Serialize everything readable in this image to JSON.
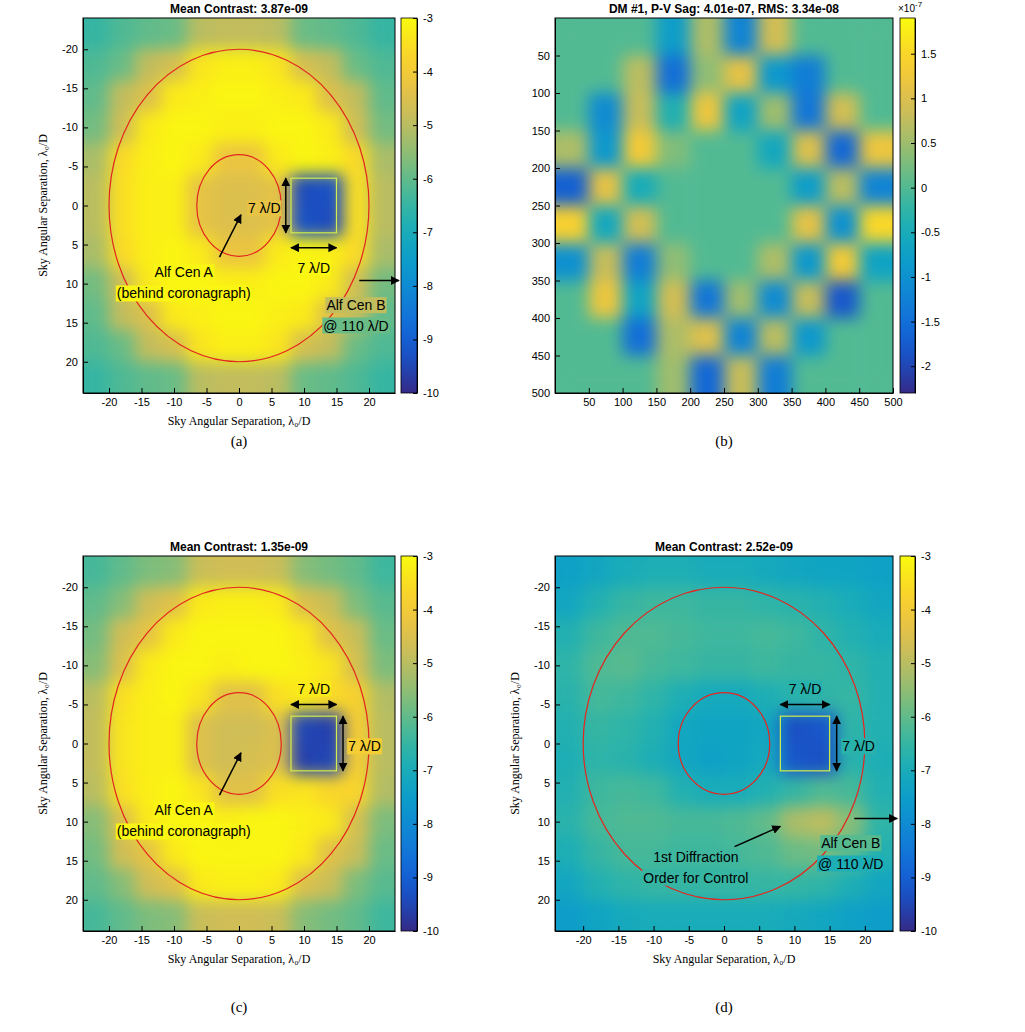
{
  "chart_data": [
    {
      "type": "heatmap",
      "title": "Mean Contrast: 3.87e-09",
      "caption": "(a)",
      "x_label": "Sky Angular Separation, λ₀/D",
      "y_label": "Sky Angular Separation, λ₀/D",
      "xlim": [
        -24,
        24
      ],
      "ylim": [
        -24,
        24
      ],
      "xticks": [
        -20,
        -15,
        -10,
        -5,
        0,
        5,
        10,
        15,
        20
      ],
      "yticks": [
        -20,
        -15,
        -10,
        -5,
        0,
        5,
        10,
        15,
        20
      ],
      "x_edges": [
        -24,
        -20,
        -16,
        -12,
        -8,
        -4,
        0,
        4,
        8,
        12,
        16,
        20,
        24
      ],
      "y_edges": [
        -24,
        -20,
        -16,
        -12,
        -8,
        -4,
        0,
        4,
        8,
        12,
        16,
        20,
        24
      ],
      "z": [
        [
          -6.5,
          -6.2,
          -6.0,
          -5.9,
          -5.0,
          -4.9,
          -4.9,
          -5.0,
          -5.9,
          -6.0,
          -6.2,
          -6.5
        ],
        [
          -6.2,
          -5.9,
          -4.9,
          -4.6,
          -3.4,
          -3.2,
          -3.2,
          -3.4,
          -4.6,
          -4.9,
          -5.9,
          -6.2
        ],
        [
          -6.0,
          -4.9,
          -4.5,
          -3.3,
          -3.2,
          -3.1,
          -3.1,
          -3.2,
          -3.3,
          -4.5,
          -4.9,
          -6.0
        ],
        [
          -5.8,
          -4.7,
          -3.3,
          -3.1,
          -3.1,
          -3.2,
          -3.2,
          -3.1,
          -3.1,
          -3.3,
          -4.7,
          -5.8
        ],
        [
          -5.2,
          -3.6,
          -3.2,
          -3.1,
          -3.3,
          -4.2,
          -4.2,
          -3.3,
          -3.1,
          -3.2,
          -3.6,
          -5.2
        ],
        [
          -5.0,
          -3.5,
          -3.2,
          -3.2,
          -4.3,
          -4.5,
          -4.5,
          -4.3,
          -9.4,
          -9.3,
          -3.5,
          -5.0
        ],
        [
          -5.0,
          -3.5,
          -3.2,
          -3.2,
          -4.3,
          -4.5,
          -4.5,
          -4.3,
          -9.3,
          -9.4,
          -3.5,
          -5.0
        ],
        [
          -5.2,
          -3.6,
          -3.2,
          -3.1,
          -3.3,
          -4.2,
          -4.2,
          -3.3,
          -3.1,
          -3.2,
          -3.6,
          -5.2
        ],
        [
          -5.8,
          -4.7,
          -3.3,
          -3.1,
          -3.1,
          -3.2,
          -3.2,
          -3.1,
          -3.1,
          -3.3,
          -4.7,
          -5.8
        ],
        [
          -6.0,
          -4.9,
          -4.5,
          -3.3,
          -3.2,
          -3.1,
          -3.1,
          -3.2,
          -3.3,
          -4.5,
          -4.9,
          -6.0
        ],
        [
          -6.2,
          -5.9,
          -4.9,
          -4.6,
          -3.4,
          -3.2,
          -3.2,
          -3.4,
          -4.6,
          -4.9,
          -5.9,
          -6.2
        ],
        [
          -6.5,
          -6.2,
          -6.0,
          -5.9,
          -5.0,
          -4.9,
          -4.9,
          -5.0,
          -5.9,
          -6.0,
          -6.2,
          -6.5
        ]
      ],
      "colorbar": {
        "range": [
          -10,
          -3
        ],
        "ticks": [
          -3,
          -4,
          -5,
          -6,
          -7,
          -8,
          -9,
          -10
        ]
      },
      "circles": [
        {
          "cx": 0,
          "cy": 0,
          "r": 6.5
        },
        {
          "cx": 0,
          "cy": 0,
          "r": 20
        }
      ],
      "box": {
        "x": [
          8,
          15
        ],
        "y": [
          -3.5,
          3.5
        ]
      },
      "annotations": [
        {
          "text": [
            "7 λ/D"
          ]
        },
        {
          "text": [
            "7 λ/D"
          ]
        },
        {
          "text": [
            "Alf Cen A",
            "(behind coronagraph)"
          ]
        },
        {
          "text": [
            "Alf Cen B",
            "@ 110 λ/D"
          ]
        }
      ]
    },
    {
      "type": "heatmap",
      "title": "DM #1, P-V Sag: 4.01e-07, RMS: 3.34e-08",
      "caption": "(b)",
      "xlim": [
        0,
        500
      ],
      "ylim": [
        0,
        500
      ],
      "xticks": [
        50,
        100,
        150,
        200,
        250,
        300,
        350,
        400,
        450,
        500
      ],
      "yticks": [
        50,
        100,
        150,
        200,
        250,
        300,
        350,
        400,
        450,
        500
      ],
      "x_edges": [
        0,
        50,
        100,
        150,
        200,
        250,
        300,
        350,
        400,
        450,
        500
      ],
      "y_edges": [
        0,
        50,
        100,
        150,
        200,
        250,
        300,
        350,
        400,
        450,
        500
      ],
      "z": [
        [
          0,
          0,
          0,
          -0.8,
          0.6,
          -1.2,
          0.9,
          0,
          0,
          0
        ],
        [
          0,
          0,
          0.7,
          -1.5,
          0.4,
          1.1,
          -0.9,
          -1.3,
          0,
          0
        ],
        [
          0,
          -1.1,
          0.8,
          -0.4,
          1.2,
          -0.7,
          0.5,
          -1.4,
          0.9,
          0
        ],
        [
          0.6,
          -0.9,
          1.3,
          0.3,
          0,
          0,
          -0.6,
          1.0,
          -1.6,
          1.2
        ],
        [
          -1.7,
          1.1,
          -0.5,
          0,
          0,
          0,
          0,
          -0.8,
          0.7,
          -1.2
        ],
        [
          1.4,
          -0.6,
          0.9,
          0,
          0,
          0,
          0,
          1.1,
          -1.0,
          1.5
        ],
        [
          -1.0,
          0.8,
          -1.3,
          0.4,
          0,
          0,
          0.6,
          -0.9,
          1.3,
          -0.7
        ],
        [
          0,
          1.2,
          -0.7,
          0.9,
          -1.4,
          0.5,
          -1.1,
          0.8,
          -1.8,
          0
        ],
        [
          0,
          0,
          -1.5,
          0.6,
          1.0,
          -1.2,
          0.7,
          -0.9,
          0,
          0
        ],
        [
          0,
          0,
          0,
          0.5,
          -1.6,
          0.8,
          -1.3,
          0,
          0,
          0
        ]
      ],
      "colorbar": {
        "range": [
          -2.3,
          1.9
        ],
        "ticks": [
          1.5,
          1,
          0.5,
          0,
          -0.5,
          -1,
          -1.5,
          -2
        ],
        "multiplier": "×10",
        "exponent": "-7"
      }
    },
    {
      "type": "heatmap",
      "title": "Mean Contrast: 1.35e-09",
      "caption": "(c)",
      "x_label": "Sky Angular Separation, λ₀/D",
      "y_label": "Sky Angular Separation, λ₀/D",
      "xlim": [
        -24,
        24
      ],
      "ylim": [
        -24,
        24
      ],
      "xticks": [
        -20,
        -15,
        -10,
        -5,
        0,
        5,
        10,
        15,
        20
      ],
      "yticks": [
        -20,
        -15,
        -10,
        -5,
        0,
        5,
        10,
        15,
        20
      ],
      "x_edges": [
        -24,
        -20,
        -16,
        -12,
        -8,
        -4,
        0,
        4,
        8,
        12,
        16,
        20,
        24
      ],
      "y_edges": [
        -24,
        -20,
        -16,
        -12,
        -8,
        -4,
        0,
        4,
        8,
        12,
        16,
        20,
        24
      ],
      "z": [
        [
          -6.3,
          -6.0,
          -5.7,
          -5.6,
          -4.8,
          -4.7,
          -4.7,
          -4.8,
          -5.6,
          -5.8,
          -6.0,
          -6.4
        ],
        [
          -6.0,
          -5.6,
          -4.7,
          -4.4,
          -3.3,
          -3.2,
          -3.2,
          -3.3,
          -4.5,
          -4.8,
          -5.7,
          -6.1
        ],
        [
          -5.8,
          -4.7,
          -4.3,
          -3.3,
          -3.1,
          -3.1,
          -3.1,
          -3.1,
          -3.3,
          -4.4,
          -4.8,
          -5.9
        ],
        [
          -5.6,
          -4.5,
          -3.3,
          -3.1,
          -3.1,
          -3.2,
          -3.1,
          -3.1,
          -3.2,
          -3.4,
          -4.6,
          -5.7
        ],
        [
          -5.0,
          -3.5,
          -3.2,
          -3.1,
          -3.4,
          -4.4,
          -4.4,
          -3.5,
          -3.3,
          -3.6,
          -3.8,
          -5.1
        ],
        [
          -4.9,
          -3.4,
          -3.2,
          -3.2,
          -4.5,
          -4.7,
          -4.7,
          -4.5,
          -9.5,
          -9.6,
          -3.9,
          -5.0
        ],
        [
          -4.9,
          -3.4,
          -3.2,
          -3.2,
          -4.5,
          -4.7,
          -4.6,
          -4.5,
          -9.6,
          -9.5,
          -3.9,
          -5.0
        ],
        [
          -5.0,
          -3.5,
          -3.2,
          -3.1,
          -3.4,
          -4.4,
          -4.4,
          -3.5,
          -3.4,
          -3.7,
          -3.7,
          -5.1
        ],
        [
          -5.6,
          -4.5,
          -3.3,
          -3.1,
          -3.1,
          -3.2,
          -3.1,
          -3.1,
          -3.2,
          -3.3,
          -4.6,
          -5.7
        ],
        [
          -5.8,
          -4.7,
          -4.3,
          -3.3,
          -3.1,
          -3.1,
          -3.1,
          -3.1,
          -3.3,
          -4.4,
          -4.8,
          -5.9
        ],
        [
          -6.0,
          -5.6,
          -4.7,
          -4.4,
          -3.3,
          -3.2,
          -3.2,
          -3.3,
          -4.5,
          -4.8,
          -5.7,
          -6.1
        ],
        [
          -6.3,
          -6.0,
          -5.7,
          -5.6,
          -4.8,
          -4.7,
          -4.7,
          -4.8,
          -5.6,
          -5.8,
          -6.0,
          -6.4
        ]
      ],
      "colorbar": {
        "range": [
          -10,
          -3
        ],
        "ticks": [
          -3,
          -4,
          -5,
          -6,
          -7,
          -8,
          -9,
          -10
        ]
      },
      "circles": [
        {
          "cx": 0,
          "cy": 0,
          "r": 6.5
        },
        {
          "cx": 0,
          "cy": 0,
          "r": 20
        }
      ],
      "box": {
        "x": [
          8,
          15
        ],
        "y": [
          -3.5,
          3.5
        ]
      },
      "annotations": [
        {
          "text": [
            "7 λ/D"
          ]
        },
        {
          "text": [
            "7 λ/D"
          ]
        },
        {
          "text": [
            "Alf Cen A",
            "(behind coronagraph)"
          ]
        }
      ]
    },
    {
      "type": "heatmap",
      "title": "Mean Contrast: 2.52e-09",
      "caption": "(d)",
      "x_label": "Sky Angular Separation, λ₀/D",
      "y_label": "Sky Angular Separation, λ₀/D",
      "xlim": [
        -24,
        24
      ],
      "ylim": [
        -24,
        24
      ],
      "xticks": [
        -20,
        -15,
        -10,
        -5,
        0,
        5,
        10,
        15,
        20
      ],
      "yticks": [
        -20,
        -15,
        -10,
        -5,
        0,
        5,
        10,
        15,
        20
      ],
      "x_edges": [
        -24,
        -20,
        -16,
        -12,
        -8,
        -4,
        0,
        4,
        8,
        12,
        16,
        20,
        24
      ],
      "y_edges": [
        -24,
        -20,
        -16,
        -12,
        -8,
        -4,
        0,
        4,
        8,
        12,
        16,
        20,
        24
      ],
      "z": [
        [
          -7.4,
          -7.2,
          -7.0,
          -6.9,
          -6.9,
          -7.0,
          -7.0,
          -7.1,
          -7.2,
          -7.3,
          -7.3,
          -7.4
        ],
        [
          -7.2,
          -6.8,
          -6.5,
          -6.4,
          -6.4,
          -6.5,
          -6.5,
          -6.6,
          -6.7,
          -6.8,
          -7.0,
          -7.2
        ],
        [
          -6.8,
          -6.4,
          -6.2,
          -6.2,
          -6.3,
          -6.4,
          -6.4,
          -6.3,
          -6.4,
          -6.6,
          -6.8,
          -7.0
        ],
        [
          -6.6,
          -6.2,
          -6.1,
          -6.3,
          -6.4,
          -6.5,
          -6.5,
          -6.4,
          -6.5,
          -6.5,
          -6.6,
          -6.8
        ],
        [
          -6.7,
          -6.3,
          -6.4,
          -6.6,
          -6.9,
          -7.1,
          -7.1,
          -6.9,
          -6.7,
          -6.6,
          -6.5,
          -6.8
        ],
        [
          -6.8,
          -6.5,
          -6.6,
          -6.8,
          -7.2,
          -7.3,
          -7.3,
          -7.2,
          -9.3,
          -9.2,
          -6.6,
          -6.8
        ],
        [
          -6.9,
          -6.6,
          -6.7,
          -6.9,
          -7.2,
          -7.4,
          -7.3,
          -7.1,
          -9.2,
          -9.3,
          -6.7,
          -6.9
        ],
        [
          -6.8,
          -6.4,
          -6.3,
          -6.4,
          -6.8,
          -7.0,
          -7.0,
          -6.8,
          -6.5,
          -6.2,
          -6.3,
          -6.8
        ],
        [
          -6.7,
          -6.3,
          -6.2,
          -6.2,
          -6.3,
          -6.3,
          -6.2,
          -6.0,
          -5.2,
          -5.0,
          -5.6,
          -6.6
        ],
        [
          -6.9,
          -6.5,
          -6.3,
          -6.3,
          -6.4,
          -6.4,
          -6.3,
          -6.2,
          -5.9,
          -5.8,
          -6.1,
          -6.8
        ],
        [
          -7.2,
          -6.8,
          -6.6,
          -6.5,
          -6.5,
          -6.5,
          -6.5,
          -6.5,
          -6.5,
          -6.6,
          -6.9,
          -7.2
        ],
        [
          -7.5,
          -7.3,
          -7.1,
          -7.0,
          -7.0,
          -7.0,
          -7.0,
          -7.0,
          -7.1,
          -7.2,
          -7.4,
          -7.5
        ]
      ],
      "colorbar": {
        "range": [
          -10,
          -3
        ],
        "ticks": [
          -3,
          -4,
          -5,
          -6,
          -7,
          -8,
          -9,
          -10
        ]
      },
      "circles": [
        {
          "cx": 0,
          "cy": 0,
          "r": 6.5
        },
        {
          "cx": 0,
          "cy": 0,
          "r": 20
        }
      ],
      "box": {
        "x": [
          8,
          15
        ],
        "y": [
          -3.5,
          3.5
        ]
      },
      "annotations": [
        {
          "text": [
            "7 λ/D"
          ]
        },
        {
          "text": [
            "7 λ/D"
          ]
        },
        {
          "text": [
            "1st Diffraction",
            "Order for Control"
          ]
        },
        {
          "text": [
            "Alf Cen B",
            "@ 110 λ/D"
          ]
        }
      ]
    }
  ]
}
